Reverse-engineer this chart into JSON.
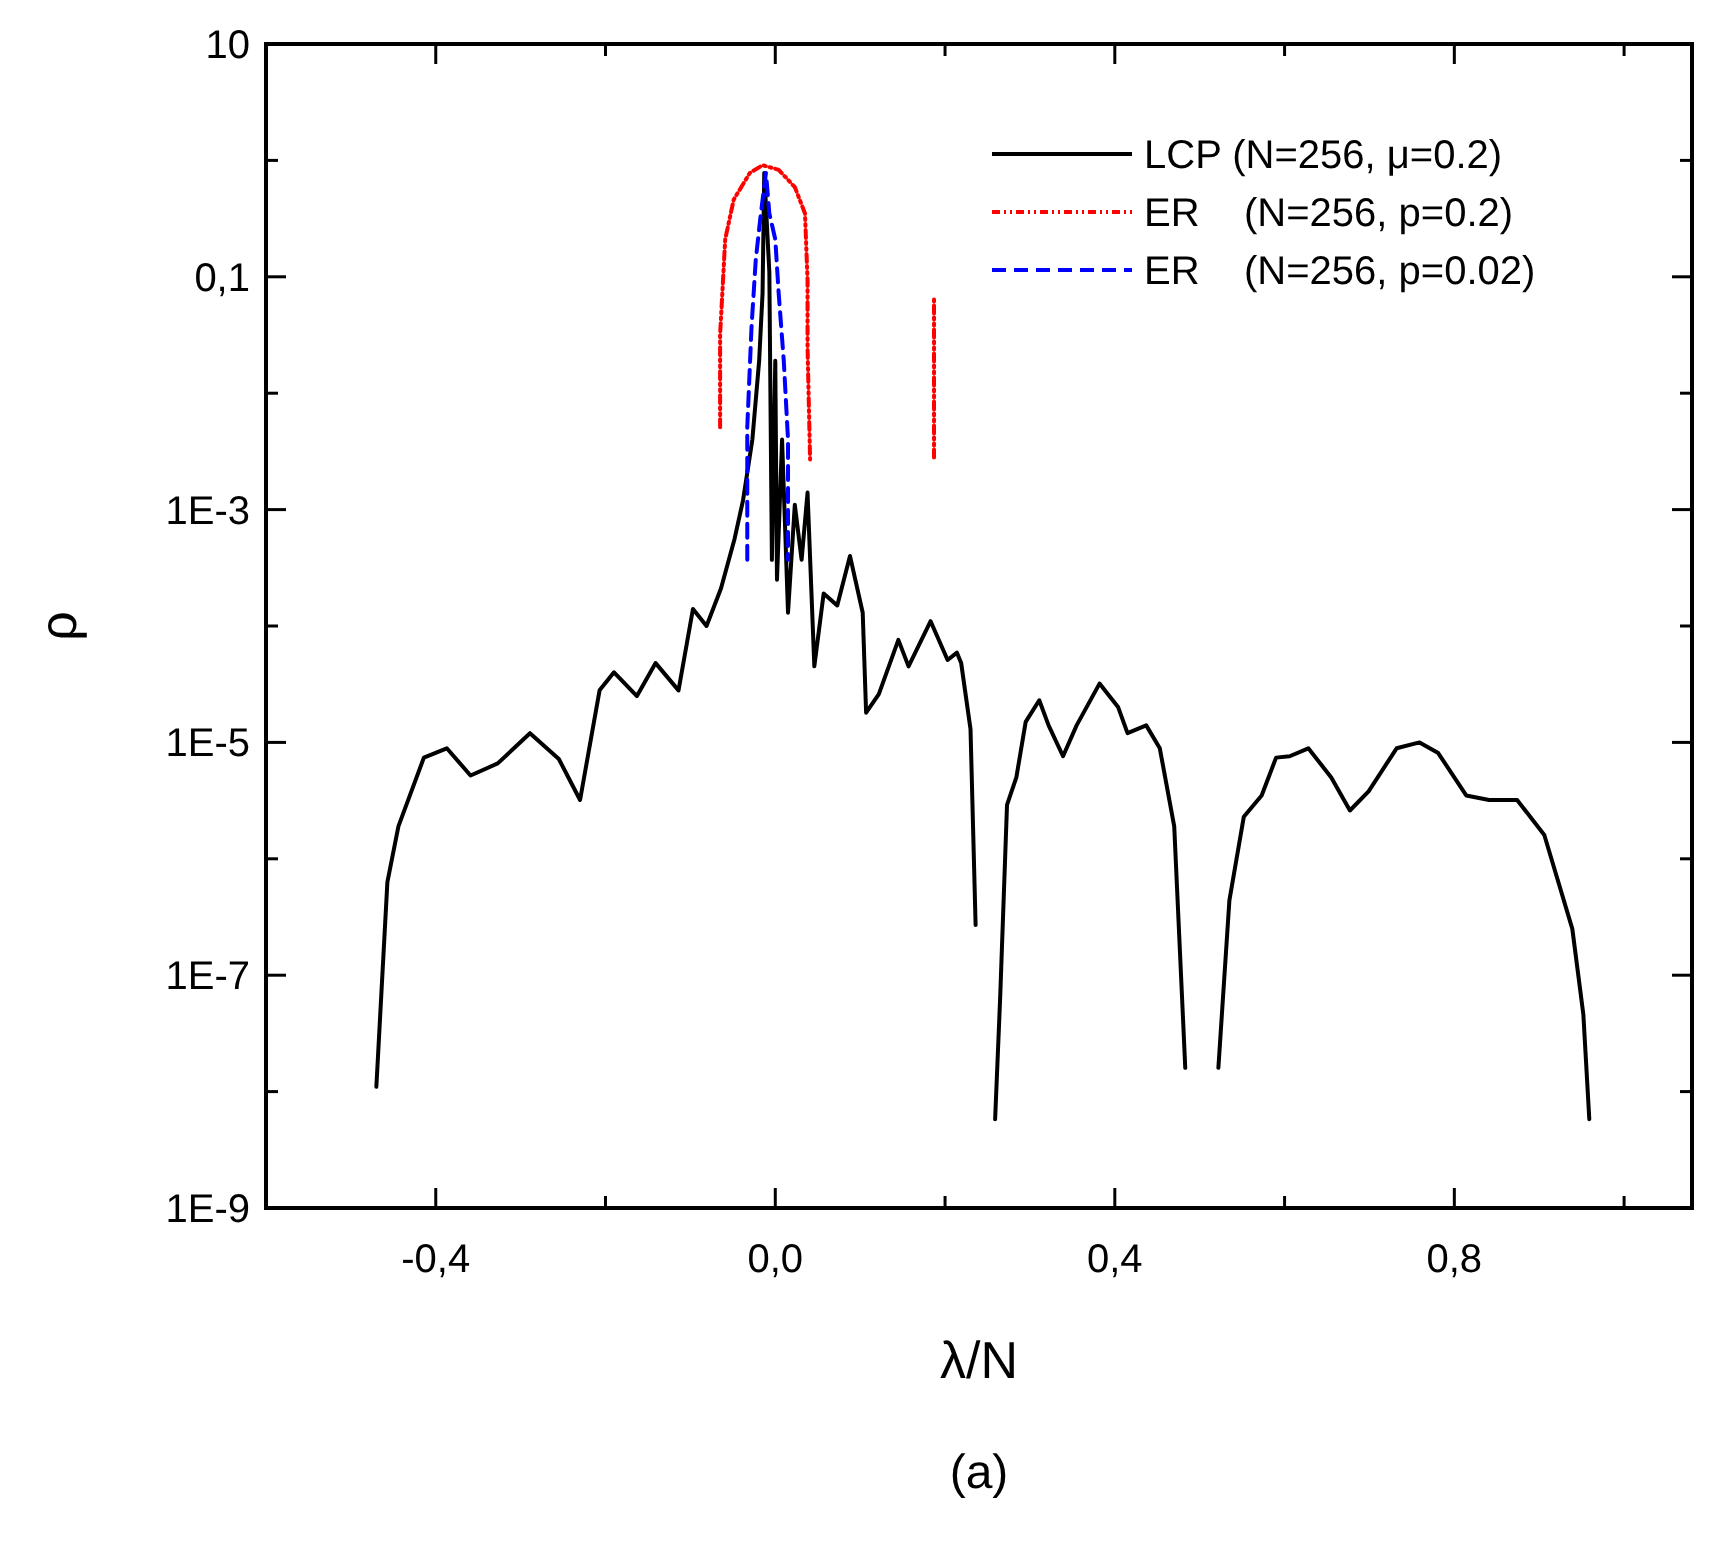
{
  "chart_data": {
    "type": "line",
    "xlabel": "λ/N",
    "ylabel": "ρ",
    "annotations": [
      "(a)"
    ],
    "log": "y",
    "grid": false,
    "legend": "top right",
    "marker": "none",
    "xlim": [
      -0.6,
      1.08
    ],
    "xticks": [
      {
        "value": -0.4,
        "label": "-0,4"
      },
      {
        "value": -0.2,
        "label": null
      },
      {
        "value": 0.0,
        "label": "0,0"
      },
      {
        "value": 0.2,
        "label": null
      },
      {
        "value": 0.4,
        "label": "0,4"
      },
      {
        "value": 0.6,
        "label": null
      },
      {
        "value": 0.8,
        "label": "0,8"
      },
      {
        "value": 1.0,
        "label": null
      }
    ],
    "ylim": [
      1e-09,
      10
    ],
    "yticks": [
      {
        "value": 1e-09,
        "label": "1E-9"
      },
      {
        "value": 1e-08,
        "label": null
      },
      {
        "value": 1e-07,
        "label": "1E-7"
      },
      {
        "value": 1e-06,
        "label": null
      },
      {
        "value": 1e-05,
        "label": "1E-5"
      },
      {
        "value": 0.0001,
        "label": null
      },
      {
        "value": 0.001,
        "label": "1E-3"
      },
      {
        "value": 0.01,
        "label": null
      },
      {
        "value": 0.1,
        "label": "0,1"
      },
      {
        "value": 1,
        "label": null
      },
      {
        "value": 10,
        "label": "10"
      }
    ],
    "series": [
      {
        "name": "LCP (N=256, μ=0.2)",
        "color": "#000000",
        "line_style": "solid",
        "x": [
          -0.47,
          -0.457,
          -0.444,
          -0.414,
          -0.387,
          -0.359,
          -0.327,
          -0.289,
          -0.255,
          -0.23,
          -0.207,
          -0.19,
          -0.163,
          -0.141,
          -0.114,
          -0.097,
          -0.081,
          -0.064,
          -0.048,
          -0.038,
          -0.027,
          -0.019,
          -0.015,
          -0.013,
          -0.007,
          -0.004,
          0.0,
          0.002,
          0.008,
          0.015,
          0.023,
          0.031,
          0.038,
          0.046,
          0.057,
          0.073,
          0.088,
          0.103,
          0.107,
          0.122,
          0.145,
          0.157,
          0.183,
          0.203,
          0.214,
          0.219,
          0.23,
          0.236
        ],
        "values": [
          1.1e-08,
          6.3e-07,
          1.9e-06,
          7.4e-06,
          8.9e-06,
          5.2e-06,
          6.6e-06,
          1.2e-05,
          7.2e-06,
          3.2e-06,
          2.8e-05,
          4e-05,
          2.5e-05,
          4.8e-05,
          2.8e-05,
          0.00014,
          0.0001,
          0.00021,
          0.00056,
          0.0012,
          0.004,
          0.019,
          0.072,
          0.78,
          0.11,
          0.00037,
          0.019,
          0.00025,
          0.004,
          0.00013,
          0.0011,
          0.00037,
          0.0014,
          4.5e-05,
          0.00019,
          0.00015,
          0.0004,
          0.00013,
          1.8e-05,
          2.6e-05,
          7.6e-05,
          4.5e-05,
          0.00011,
          5.1e-05,
          5.9e-05,
          4.8e-05,
          1.3e-05,
          2.7e-07
        ]
      },
      {
        "color": "#000000",
        "line_style": "solid",
        "x": [
          0.259,
          0.265,
          0.273,
          0.284,
          0.295,
          0.311,
          0.322,
          0.339,
          0.355,
          0.382,
          0.404,
          0.415,
          0.437,
          0.453,
          0.47,
          0.483
        ],
        "values": [
          5.8e-09,
          6.6e-08,
          2.9e-06,
          5e-06,
          1.5e-05,
          2.3e-05,
          1.4e-05,
          7.6e-06,
          1.4e-05,
          3.2e-05,
          2e-05,
          1.2e-05,
          1.4e-05,
          8.9e-06,
          1.9e-06,
          1.6e-08
        ]
      },
      {
        "color": "#000000",
        "line_style": "solid",
        "x": [
          0.522,
          0.535,
          0.552,
          0.573,
          0.59,
          0.606,
          0.628,
          0.655,
          0.677,
          0.699,
          0.732,
          0.759,
          0.781,
          0.814,
          0.841,
          0.874,
          0.906,
          0.939,
          0.952,
          0.959
        ],
        "values": [
          1.6e-08,
          4.4e-07,
          2.3e-06,
          3.5e-06,
          7.4e-06,
          7.6e-06,
          8.9e-06,
          5e-06,
          2.6e-06,
          3.8e-06,
          8.9e-06,
          1e-05,
          8.1e-06,
          3.5e-06,
          3.2e-06,
          3.2e-06,
          1.6e-06,
          2.5e-07,
          4.6e-08,
          5.8e-09
        ]
      },
      {
        "name": "ER    (N=256, p=0.2)",
        "color": "#ff0000",
        "line_style": "dotted",
        "x": [
          -0.065,
          -0.065,
          -0.059,
          -0.049,
          -0.03,
          -0.015,
          0.004,
          0.023,
          0.035,
          0.038,
          0.038,
          0.041
        ],
        "values": [
          0.0051,
          0.032,
          0.21,
          0.46,
          0.78,
          0.91,
          0.83,
          0.59,
          0.35,
          0.093,
          0.025,
          0.0027
        ]
      },
      {
        "color": "#ff0000",
        "line_style": "dotted",
        "x": [
          0.187,
          0.187
        ],
        "values": [
          0.0028,
          0.068
        ]
      },
      {
        "name": "ER    (N=256, p=0.02)",
        "color": "#0000ff",
        "line_style": "dashed",
        "x": [
          -0.033,
          -0.033,
          -0.028,
          -0.023,
          -0.017,
          -0.011,
          -0.007,
          0.0,
          0.004,
          0.01,
          0.015,
          0.015
        ],
        "values": [
          0.00037,
          0.0051,
          0.037,
          0.14,
          0.35,
          0.78,
          0.35,
          0.21,
          0.072,
          0.019,
          0.004,
          0.00037
        ]
      }
    ]
  }
}
